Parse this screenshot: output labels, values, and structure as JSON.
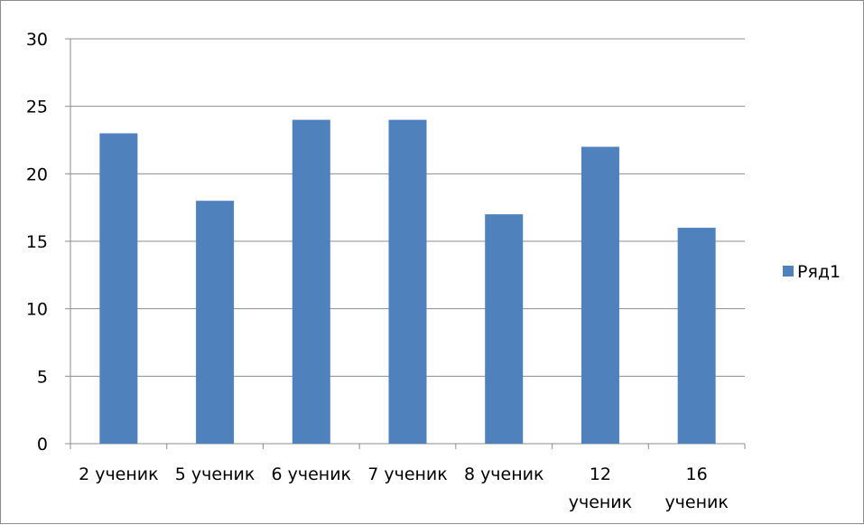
{
  "chart_data": {
    "type": "bar",
    "categories": [
      [
        "2 ученик"
      ],
      [
        "5 ученик"
      ],
      [
        "6 ученик"
      ],
      [
        "7 ученик"
      ],
      [
        "8 ученик"
      ],
      [
        "12",
        "ученик"
      ],
      [
        "16",
        "ученик"
      ]
    ],
    "series": [
      {
        "name": "Ряд1",
        "values": [
          23,
          18,
          24,
          24,
          17,
          22,
          16
        ],
        "color": "#4f81bd"
      }
    ],
    "yticks": [
      "0",
      "5",
      "10",
      "15",
      "20",
      "25",
      "30"
    ],
    "ylim": [
      0,
      30
    ],
    "grid": true,
    "legend": "right"
  }
}
